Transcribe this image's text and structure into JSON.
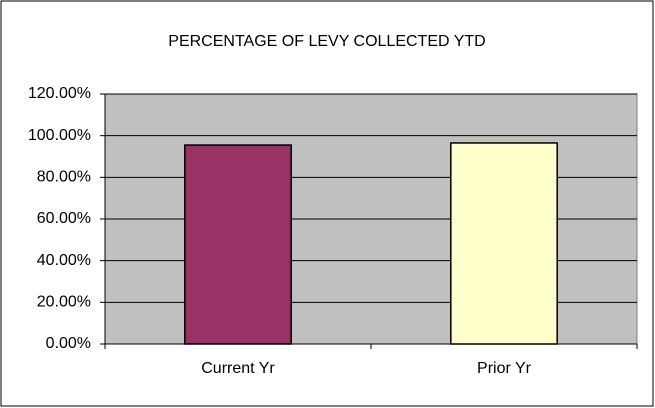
{
  "chart_data": {
    "type": "bar",
    "title": "PERCENTAGE OF LEVY COLLECTED YTD",
    "categories": [
      "Current Yr",
      "Prior Yr"
    ],
    "values": [
      95.5,
      96.5
    ],
    "colors": [
      "#993366",
      "#ffffcc"
    ],
    "ylim": [
      0,
      120
    ],
    "yticks": [
      {
        "value": 0,
        "label": "0.00%"
      },
      {
        "value": 20,
        "label": "20.00%"
      },
      {
        "value": 40,
        "label": "40.00%"
      },
      {
        "value": 60,
        "label": "60.00%"
      },
      {
        "value": 80,
        "label": "80.00%"
      },
      {
        "value": 100,
        "label": "100.00%"
      },
      {
        "value": 120,
        "label": "120.00%"
      }
    ],
    "grid": true
  }
}
